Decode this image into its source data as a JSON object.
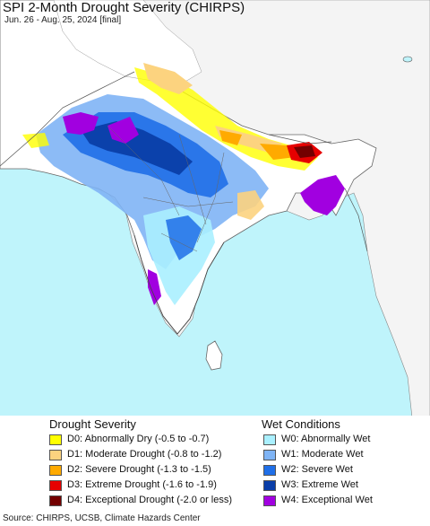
{
  "map": {
    "title": "SPI 2-Month Drought Severity (CHIRPS)",
    "subtitle": "Jun. 26 - Aug. 25, 2024 [final]",
    "colors": {
      "water": "#bff4fb",
      "land_neutral": "#ffffff",
      "outside_region": "#f2f2f2"
    }
  },
  "legend": {
    "drought": {
      "title": "Drought Severity",
      "items": [
        {
          "code": "D0",
          "label": "D0: Abnormally Dry (-0.5 to -0.7)",
          "color": "#ffff00"
        },
        {
          "code": "D1",
          "label": "D1: Moderate Drought (-0.8 to -1.2)",
          "color": "#fcd37f"
        },
        {
          "code": "D2",
          "label": "D2: Severe Drought (-1.3 to -1.5)",
          "color": "#ffaa00"
        },
        {
          "code": "D3",
          "label": "D3: Extreme Drought (-1.6 to -1.9)",
          "color": "#e60000"
        },
        {
          "code": "D4",
          "label": "D4: Exceptional Drought (-2.0 or less)",
          "color": "#730000"
        }
      ]
    },
    "wet": {
      "title": "Wet Conditions",
      "items": [
        {
          "code": "W0",
          "label": "W0: Abnormally Wet",
          "color": "#aaf0ff"
        },
        {
          "code": "W1",
          "label": "W1: Moderate Wet",
          "color": "#7fb4f5"
        },
        {
          "code": "W2",
          "label": "W2: Severe Wet",
          "color": "#1f6fe8"
        },
        {
          "code": "W3",
          "label": "W3: Extreme Wet",
          "color": "#0a3ea8"
        },
        {
          "code": "W4",
          "label": "W4: Exceptional Wet",
          "color": "#a100e0"
        }
      ]
    }
  },
  "footer": {
    "source": "Source: CHIRPS, UCSB, Climate Hazards Center"
  }
}
